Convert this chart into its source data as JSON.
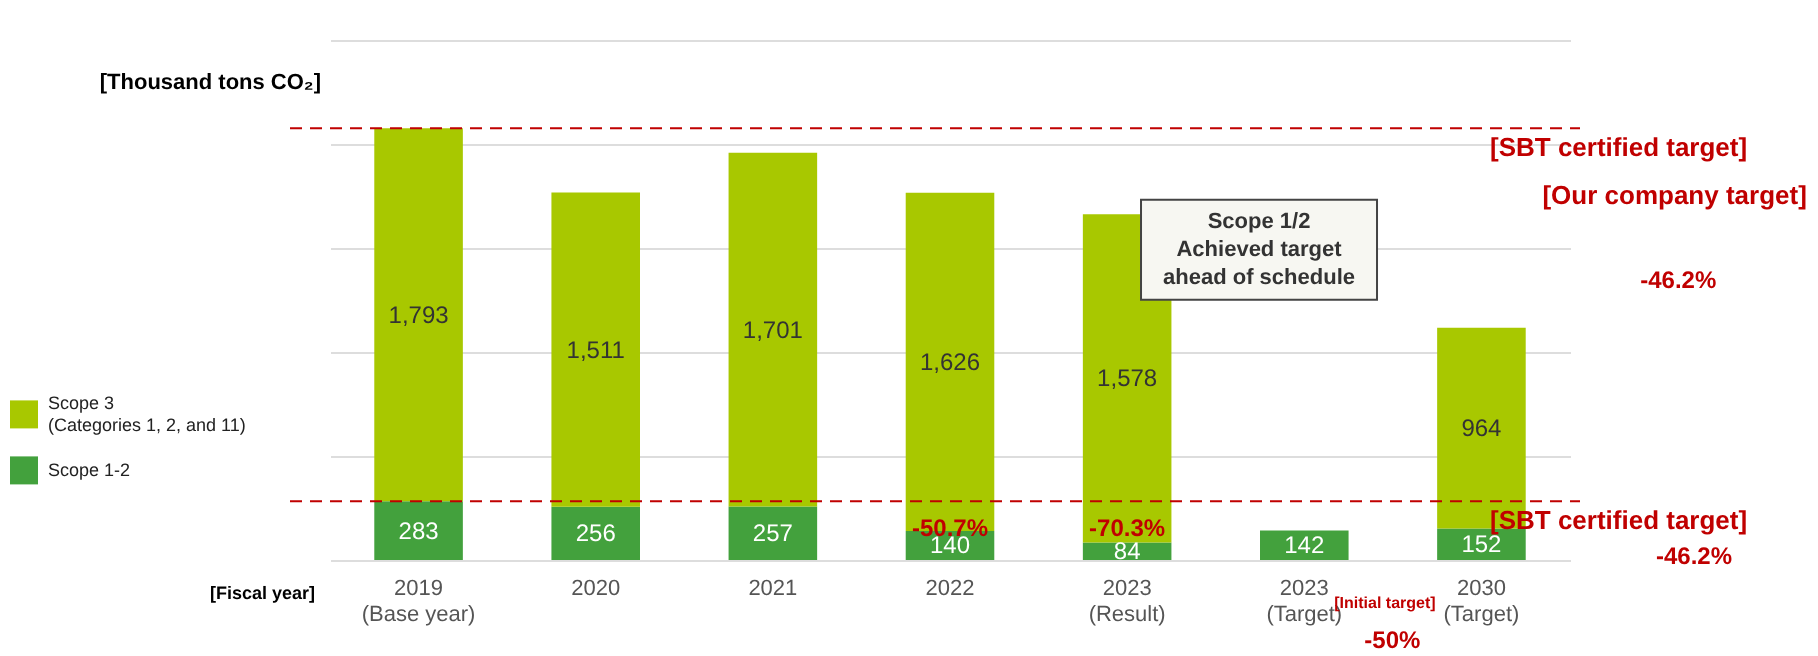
{
  "chart_data": {
    "type": "bar",
    "stacked": true,
    "ylabel": "[Thousand tons CO₂]",
    "xlabel": "[Fiscal year]",
    "categories": [
      "2019\n(Base year)",
      "2020",
      "2021",
      "2022",
      "2023\n(Result)",
      "2023\n(Target)",
      "2030\n(Target)"
    ],
    "series": [
      {
        "name": "Scope 1-2",
        "color": "#43a13d",
        "values": [
          283,
          256,
          257,
          140,
          84,
          142,
          152
        ],
        "value_labels": [
          "283",
          "256",
          "257",
          "140",
          "84",
          "142",
          "152"
        ]
      },
      {
        "name": "Scope 3\n(Categories 1, 2, and 11)",
        "color": "#a8c800",
        "values": [
          1793,
          1511,
          1701,
          1626,
          1578,
          null,
          964
        ],
        "value_labels": [
          "1,793",
          "1,511",
          "1,701",
          "1,626",
          "1,578",
          null,
          "964"
        ]
      }
    ],
    "legend": "left",
    "grid": "y",
    "tick_labels": "x",
    "ylim": [
      0,
      2500
    ],
    "yticks": [
      {
        "value": 0,
        "label": null
      },
      {
        "value": 500,
        "label": null
      },
      {
        "value": 1000,
        "label": null
      },
      {
        "value": 1500,
        "label": null
      },
      {
        "value": 2000,
        "label": null
      },
      {
        "value": 2500,
        "label": null
      }
    ],
    "ref_lines": [
      {
        "axis": "y",
        "value": 2076,
        "label": "[SBT certified target]",
        "color": "#c00000",
        "line_style": "dashed"
      },
      {
        "axis": "y",
        "value": 283,
        "label": "[SBT certified target]",
        "color": "#c00000",
        "line_style": "dashed"
      }
    ],
    "annotations": [
      "-50.7%",
      "-70.3%",
      "[Our company target]",
      "-46.2%",
      "-46.2%",
      "[Initial target]",
      "-50%",
      "Scope 1/2\nAchieved target\nahead of schedule"
    ]
  }
}
